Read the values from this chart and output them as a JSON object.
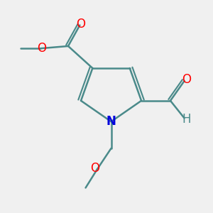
{
  "bg_color": "#f0f0f0",
  "bond_color": "#4a8a8a",
  "bond_width": 1.8,
  "atom_colors": {
    "O": "#ff0000",
    "N": "#0000dd",
    "H": "#4a8a8a"
  },
  "font_size": 11
}
